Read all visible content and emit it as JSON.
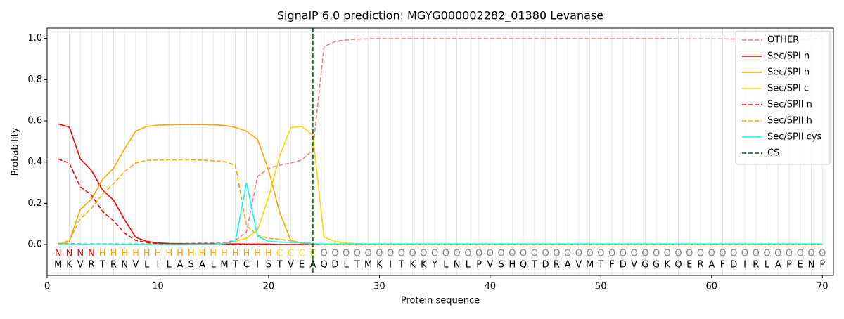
{
  "chart_data": {
    "type": "line",
    "title": "SignalP 6.0 prediction: MGYG000002282_01380 Levanase",
    "x_label": "Protein sequence",
    "y_label": "Probability",
    "x": [
      1,
      2,
      3,
      4,
      5,
      6,
      7,
      8,
      9,
      10,
      11,
      12,
      13,
      14,
      15,
      16,
      17,
      18,
      19,
      20,
      21,
      22,
      23,
      24,
      25,
      26,
      27,
      28,
      29,
      30,
      31,
      32,
      33,
      34,
      35,
      36,
      37,
      38,
      39,
      40,
      41,
      42,
      43,
      44,
      45,
      46,
      47,
      48,
      49,
      50,
      51,
      52,
      53,
      54,
      55,
      56,
      57,
      58,
      59,
      60,
      61,
      62,
      63,
      64,
      65,
      66,
      67,
      68,
      69,
      70
    ],
    "residues": [
      "M",
      "K",
      "V",
      "R",
      "T",
      "R",
      "N",
      "V",
      "L",
      "I",
      "L",
      "A",
      "S",
      "A",
      "L",
      "M",
      "T",
      "C",
      "I",
      "S",
      "T",
      "V",
      "E",
      "A",
      "Q",
      "D",
      "L",
      "T",
      "M",
      "K",
      "I",
      "T",
      "K",
      "K",
      "Y",
      "L",
      "N",
      "L",
      "P",
      "V",
      "S",
      "H",
      "Q",
      "T",
      "D",
      "R",
      "A",
      "V",
      "M",
      "T",
      "F",
      "D",
      "V",
      "G",
      "G",
      "K",
      "Q",
      "E",
      "R",
      "A",
      "F",
      "D",
      "I",
      "R",
      "L",
      "A",
      "P",
      "E",
      "N",
      "P"
    ],
    "regions": [
      "N",
      "N",
      "N",
      "N",
      "H",
      "H",
      "H",
      "H",
      "H",
      "H",
      "H",
      "H",
      "H",
      "H",
      "H",
      "H",
      "H",
      "H",
      "H",
      "H",
      "C",
      "C",
      "C",
      "C",
      "O",
      "O",
      "O",
      "O",
      "O",
      "O",
      "O",
      "O",
      "O",
      "O",
      "O",
      "O",
      "O",
      "O",
      "O",
      "O",
      "O",
      "O",
      "O",
      "O",
      "O",
      "O",
      "O",
      "O",
      "O",
      "O",
      "O",
      "O",
      "O",
      "O",
      "O",
      "O",
      "O",
      "O",
      "O",
      "O",
      "O",
      "O",
      "O",
      "O",
      "O",
      "O",
      "O",
      "O",
      "O",
      "O"
    ],
    "region_colors": {
      "N": "#ff0000",
      "H": "#ffa500",
      "C": "#ffd700",
      "O": "#808080"
    },
    "series": [
      {
        "name": "OTHER",
        "color": "#f08080",
        "linestyle": "dashed",
        "values": [
          0.005,
          0.005,
          0.003,
          0.003,
          0.003,
          0.003,
          0.003,
          0.003,
          0.003,
          0.004,
          0.005,
          0.005,
          0.006,
          0.007,
          0.008,
          0.01,
          0.02,
          0.06,
          0.33,
          0.37,
          0.385,
          0.395,
          0.41,
          0.46,
          0.96,
          0.985,
          0.992,
          0.996,
          0.998,
          0.999,
          0.999,
          0.999,
          0.999,
          0.999,
          0.999,
          0.999,
          0.999,
          0.999,
          0.999,
          0.999,
          0.999,
          0.999,
          0.999,
          0.999,
          0.999,
          0.999,
          0.999,
          0.999,
          0.999,
          0.999,
          0.999,
          0.999,
          0.999,
          0.999,
          0.999,
          0.999,
          0.998,
          0.998,
          0.998,
          0.998,
          0.998,
          0.997,
          0.997,
          0.997,
          0.997,
          0.997,
          0.996,
          0.996,
          0.997,
          0.998
        ]
      },
      {
        "name": "Sec/SPI n",
        "color": "#ff0000",
        "linestyle": "solid",
        "values": [
          0.585,
          0.57,
          0.415,
          0.36,
          0.265,
          0.215,
          0.12,
          0.035,
          0.015,
          0.008,
          0.005,
          0.004,
          0.003,
          0.003,
          0.003,
          0.003,
          0.003,
          0.002,
          0.002,
          0.002,
          0,
          0,
          0,
          0,
          0,
          0,
          0,
          0,
          0,
          0,
          0,
          0,
          0,
          0,
          0,
          0,
          0,
          0,
          0,
          0,
          0,
          0,
          0,
          0,
          0,
          0,
          0,
          0,
          0,
          0,
          0,
          0,
          0,
          0,
          0,
          0,
          0,
          0,
          0,
          0,
          0,
          0,
          0,
          0,
          0,
          0,
          0,
          0,
          0,
          0
        ]
      },
      {
        "name": "Sec/SPI h",
        "color": "#ffa500",
        "linestyle": "solid",
        "values": [
          0,
          0.015,
          0.17,
          0.22,
          0.315,
          0.37,
          0.465,
          0.55,
          0.573,
          0.579,
          0.581,
          0.582,
          0.582,
          0.582,
          0.581,
          0.578,
          0.568,
          0.55,
          0.51,
          0.36,
          0.155,
          0.02,
          0.005,
          0.002,
          0,
          0,
          0,
          0,
          0,
          0,
          0,
          0,
          0,
          0,
          0,
          0,
          0,
          0,
          0,
          0,
          0,
          0,
          0,
          0,
          0,
          0,
          0,
          0,
          0,
          0,
          0,
          0,
          0,
          0,
          0,
          0,
          0,
          0,
          0,
          0,
          0,
          0,
          0,
          0,
          0,
          0,
          0,
          0,
          0,
          0
        ]
      },
      {
        "name": "Sec/SPI c",
        "color": "#ffd700",
        "linestyle": "solid",
        "values": [
          0,
          0,
          0,
          0,
          0,
          0,
          0,
          0,
          0,
          0,
          0,
          0,
          0,
          0,
          0,
          0.005,
          0.015,
          0.03,
          0.07,
          0.23,
          0.43,
          0.568,
          0.573,
          0.53,
          0.035,
          0.015,
          0.008,
          0.004,
          0.002,
          0,
          0,
          0,
          0,
          0,
          0,
          0,
          0,
          0,
          0,
          0,
          0,
          0,
          0,
          0,
          0,
          0,
          0,
          0,
          0,
          0,
          0,
          0,
          0,
          0,
          0,
          0,
          0,
          0,
          0,
          0,
          0,
          0,
          0,
          0,
          0,
          0,
          0,
          0,
          0,
          0
        ]
      },
      {
        "name": "Sec/SPII n",
        "color": "#ff0000",
        "linestyle": "dashed",
        "values": [
          0.415,
          0.395,
          0.28,
          0.24,
          0.16,
          0.115,
          0.055,
          0.02,
          0.01,
          0.005,
          0,
          0,
          0,
          0,
          0,
          0,
          0,
          0,
          0,
          0,
          0,
          0,
          0,
          0,
          0,
          0,
          0,
          0,
          0,
          0,
          0,
          0,
          0,
          0,
          0,
          0,
          0,
          0,
          0,
          0,
          0,
          0,
          0,
          0,
          0,
          0,
          0,
          0,
          0,
          0,
          0,
          0,
          0,
          0,
          0,
          0,
          0,
          0,
          0,
          0,
          0,
          0,
          0,
          0,
          0,
          0,
          0,
          0,
          0,
          0
        ]
      },
      {
        "name": "Sec/SPII h",
        "color": "#ffa500",
        "linestyle": "dashed",
        "values": [
          0,
          0.02,
          0.125,
          0.175,
          0.245,
          0.295,
          0.355,
          0.395,
          0.408,
          0.41,
          0.411,
          0.411,
          0.411,
          0.41,
          0.406,
          0.402,
          0.385,
          0.09,
          0.045,
          0.03,
          0.025,
          0.018,
          0.01,
          0.005,
          0,
          0,
          0,
          0,
          0,
          0,
          0,
          0,
          0,
          0,
          0,
          0,
          0,
          0,
          0,
          0,
          0,
          0,
          0,
          0,
          0,
          0,
          0,
          0,
          0,
          0,
          0,
          0,
          0,
          0,
          0,
          0,
          0,
          0,
          0,
          0,
          0,
          0,
          0,
          0,
          0,
          0,
          0,
          0,
          0,
          0
        ]
      },
      {
        "name": "Sec/SPII cys",
        "color": "#00ffff",
        "linestyle": "solid",
        "values": [
          0,
          0,
          0,
          0,
          0,
          0,
          0,
          0,
          0,
          0,
          0,
          0,
          0,
          0,
          0,
          0.005,
          0.015,
          0.3,
          0.04,
          0.015,
          0.012,
          0.01,
          0.008,
          0.005,
          0.002,
          0.003,
          0.003,
          0.003,
          0.003,
          0.003,
          0.003,
          0.003,
          0.003,
          0.003,
          0.003,
          0.003,
          0.003,
          0.003,
          0.003,
          0.003,
          0.003,
          0.003,
          0.003,
          0.003,
          0.003,
          0.003,
          0.003,
          0.003,
          0.003,
          0.003,
          0.003,
          0.003,
          0.003,
          0.003,
          0.003,
          0.003,
          0.003,
          0.003,
          0.003,
          0.003,
          0.003,
          0.003,
          0.003,
          0.003,
          0.003,
          0.003,
          0.003,
          0.003,
          0.003,
          0.003
        ]
      }
    ],
    "cs": {
      "name": "CS",
      "x": 24,
      "color": "#006400"
    },
    "xlim": [
      0,
      71
    ],
    "ylim": [
      -0.15,
      1.05
    ],
    "xticks": [
      0,
      10,
      20,
      30,
      40,
      50,
      60,
      70
    ],
    "yticks": [
      {
        "value": 0,
        "label": "0.0"
      },
      0.2,
      0.4,
      0.6,
      0.8,
      {
        "value": 1,
        "label": "1.0"
      }
    ],
    "grid": true,
    "legend": "upper right"
  }
}
